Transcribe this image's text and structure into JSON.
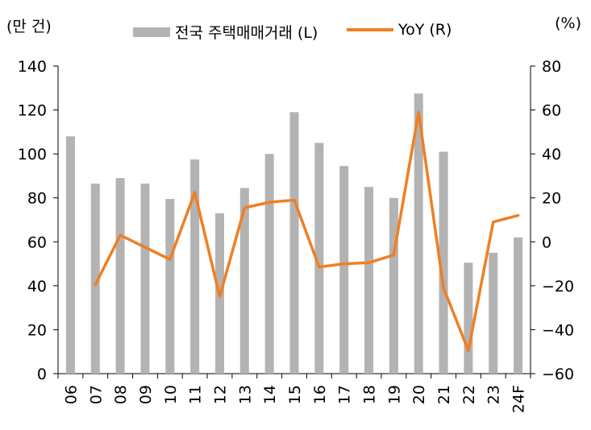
{
  "chart_data": {
    "type": "bar",
    "categories": [
      "06",
      "07",
      "08",
      "09",
      "10",
      "11",
      "12",
      "13",
      "14",
      "15",
      "16",
      "17",
      "18",
      "19",
      "20",
      "21",
      "22",
      "23",
      "24F"
    ],
    "series": [
      {
        "name": "전국 주택매매거래 (L)",
        "type": "bar",
        "axis": "left",
        "values": [
          108,
          86.5,
          89,
          86.5,
          79.5,
          97.5,
          73,
          84.5,
          100,
          119,
          105,
          94.5,
          85,
          80,
          127.5,
          101,
          50.5,
          55,
          62
        ]
      },
      {
        "name": "YoY (R)",
        "type": "line",
        "axis": "right",
        "values": [
          null,
          -19.5,
          3,
          -2.5,
          -8,
          22.5,
          -25,
          15.5,
          18,
          19,
          -11.5,
          -10,
          -9.5,
          -6,
          59,
          -21,
          -49.5,
          9,
          12
        ]
      }
    ],
    "ylim_left": [
      0,
      140
    ],
    "ylim_right": [
      -60,
      80
    ],
    "yticks_left": [
      "0",
      "20",
      "40",
      "60",
      "80",
      "100",
      "120",
      "140"
    ],
    "yticks_right": [
      "−60",
      "−40",
      "−20",
      "0",
      "20",
      "40",
      "60",
      "80"
    ],
    "ylabel_left": "(만 건)",
    "ylabel_right": "(%)",
    "legend_position": "top",
    "grid": false,
    "colors": {
      "bar": "#b3b3b3",
      "line": "#ef7f23",
      "axis": "#000000"
    }
  }
}
